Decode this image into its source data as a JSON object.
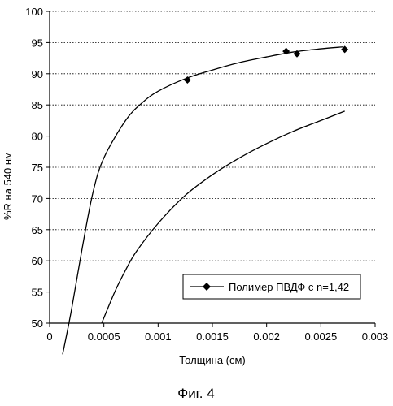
{
  "chart_data": {
    "type": "line",
    "xlabel": "Толщина (см)",
    "ylabel": "%R на 540 нм",
    "xlim": [
      0,
      0.003
    ],
    "ylim": [
      50,
      100
    ],
    "x_ticks": [
      0,
      0.0005,
      0.001,
      0.0015,
      0.002,
      0.0025,
      0.003
    ],
    "x_tick_labels": [
      "0",
      "0.0005",
      "0.001",
      "0.0015",
      "0.002",
      "0.0025",
      "0.003"
    ],
    "y_ticks": [
      50,
      55,
      60,
      65,
      70,
      75,
      80,
      85,
      90,
      95,
      100
    ],
    "y_tick_labels": [
      "50",
      "55",
      "60",
      "65",
      "70",
      "75",
      "80",
      "85",
      "90",
      "95",
      "100"
    ],
    "grid": "horizontal",
    "legend_position": "bottom-right",
    "series": [
      {
        "name": "Полимер ПВДФ с n=1,42",
        "marker": "diamond",
        "points": [
          {
            "x": 0.00127,
            "y": 89.0
          },
          {
            "x": 0.00218,
            "y": 93.6
          },
          {
            "x": 0.00228,
            "y": 93.2
          },
          {
            "x": 0.00272,
            "y": 93.9
          }
        ]
      }
    ],
    "curves": [
      {
        "points": [
          [
            0.00012,
            45.0
          ],
          [
            0.0002,
            52.0
          ],
          [
            0.0003,
            62.0
          ],
          [
            0.0004,
            71.0
          ],
          [
            0.0005,
            76.5
          ],
          [
            0.0007,
            82.5
          ],
          [
            0.00085,
            85.3
          ],
          [
            0.001,
            87.2
          ],
          [
            0.00125,
            89.2
          ],
          [
            0.0015,
            90.6
          ],
          [
            0.00175,
            91.8
          ],
          [
            0.002,
            92.7
          ],
          [
            0.00225,
            93.5
          ],
          [
            0.0025,
            94.0
          ],
          [
            0.0027,
            94.3
          ]
        ]
      },
      {
        "points": [
          [
            0.00048,
            50.0
          ],
          [
            0.0006,
            55.0
          ],
          [
            0.0007,
            58.5
          ],
          [
            0.0008,
            61.5
          ],
          [
            0.001,
            66.0
          ],
          [
            0.00125,
            70.5
          ],
          [
            0.0015,
            73.8
          ],
          [
            0.00175,
            76.5
          ],
          [
            0.002,
            78.8
          ],
          [
            0.00225,
            80.8
          ],
          [
            0.0025,
            82.5
          ],
          [
            0.00272,
            84.0
          ]
        ]
      }
    ]
  },
  "caption": "Фиг. 4",
  "colors": {
    "line": "#000000",
    "grid": "#000000",
    "background": "#ffffff"
  }
}
